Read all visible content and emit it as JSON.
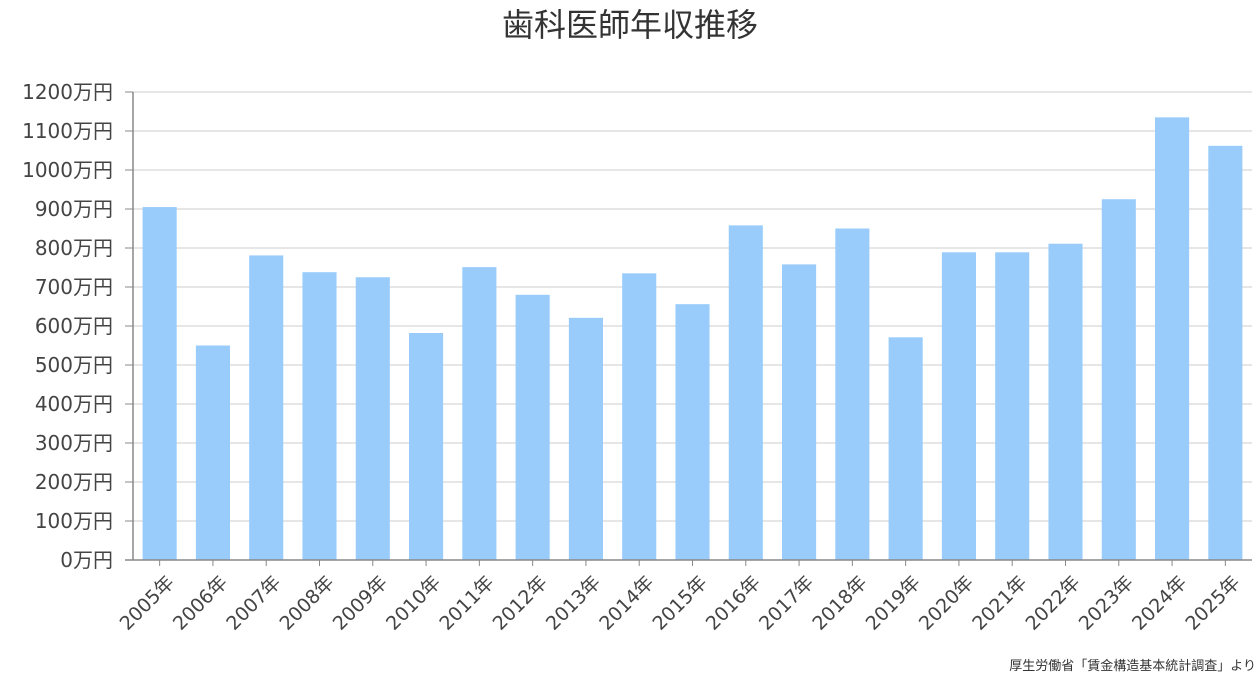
{
  "chart_data": {
    "type": "bar",
    "title": "歯科医師年収推移",
    "categories": [
      "2005年",
      "2006年",
      "2007年",
      "2008年",
      "2009年",
      "2010年",
      "2011年",
      "2012年",
      "2013年",
      "2014年",
      "2015年",
      "2016年",
      "2017年",
      "2018年",
      "2019年",
      "2020年",
      "2021年",
      "2022年",
      "2023年",
      "2024年",
      "2025年"
    ],
    "values": [
      905,
      550,
      781,
      738,
      725,
      582,
      751,
      680,
      621,
      735,
      656,
      858,
      758,
      850,
      571,
      789,
      789,
      811,
      925,
      1135,
      1062
    ],
    "ylim": [
      0,
      1200
    ],
    "yticks": [
      0,
      100,
      200,
      300,
      400,
      500,
      600,
      700,
      800,
      900,
      1000,
      1100,
      1200
    ],
    "ytick_labels": [
      "0万円",
      "100万円",
      "200万円",
      "300万円",
      "400万円",
      "500万円",
      "600万円",
      "700万円",
      "800万円",
      "900万円",
      "1000万円",
      "1100万円",
      "1200万円"
    ],
    "grid": true,
    "bar_color": "#99ccfb",
    "source_note": "厚生労働省「賃金構造基本統計調査」より"
  }
}
